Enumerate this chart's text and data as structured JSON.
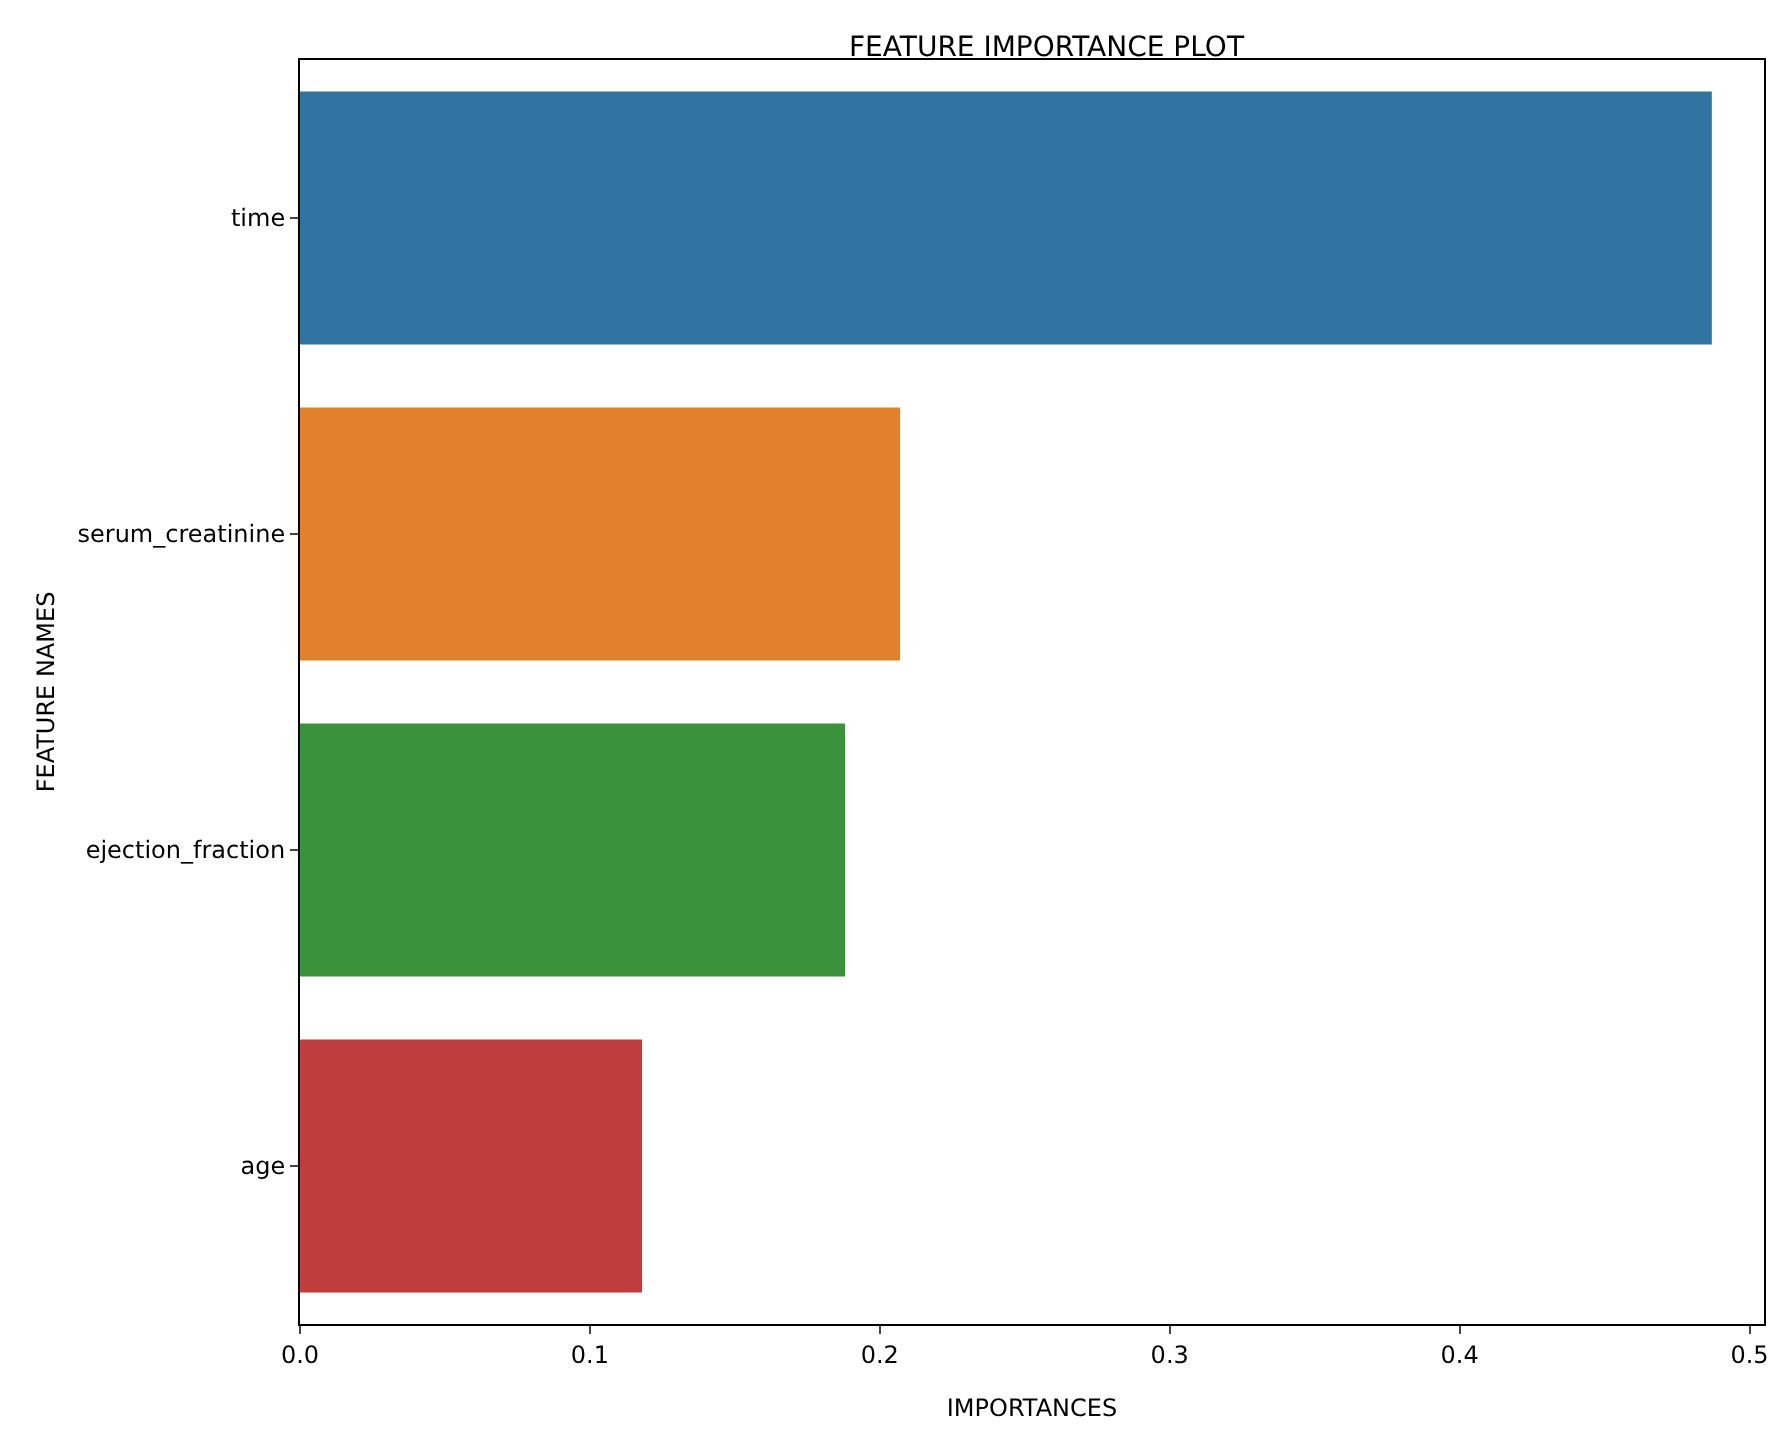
{
  "chart_data": {
    "type": "bar",
    "orientation": "horizontal",
    "title": "FEATURE IMPORTANCE PLOT",
    "xlabel": "IMPORTANCES",
    "ylabel": "FEATURE NAMES",
    "categories": [
      "time",
      "serum_creatinine",
      "ejection_fraction",
      "age"
    ],
    "values": [
      0.487,
      0.207,
      0.188,
      0.118
    ],
    "colors": [
      "#3274a1",
      "#e1812c",
      "#3a923a",
      "#c03d3e"
    ],
    "xlim": [
      0,
      0.505
    ],
    "xticks": [
      {
        "value": 0,
        "label": "0.0"
      },
      0.1,
      0.2,
      0.3,
      0.4,
      0.5
    ],
    "grid": false
  }
}
